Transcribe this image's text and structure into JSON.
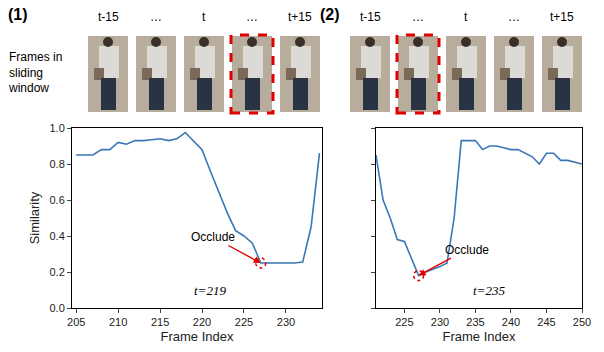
{
  "frames": {
    "row_label": [
      "Frames in",
      "sliding",
      "window"
    ],
    "panels": [
      {
        "label": "(1)",
        "frame_labels": [
          "t-15",
          "…",
          "t",
          "…",
          "t+15"
        ],
        "highlighted": 3
      },
      {
        "label": "(2)",
        "frame_labels": [
          "t-15",
          "…",
          "t",
          "…",
          "t+15"
        ],
        "highlighted": 1
      }
    ]
  },
  "chart_data": [
    {
      "type": "line",
      "color": "#3a78b5",
      "grid": false,
      "x": [
        205,
        206,
        207,
        208,
        209,
        210,
        211,
        212,
        213,
        214,
        215,
        216,
        217,
        218,
        219,
        220,
        221,
        222,
        223,
        224,
        225,
        226,
        227,
        228,
        229,
        230,
        231,
        232,
        233,
        234
      ],
      "values": [
        0.85,
        0.85,
        0.85,
        0.88,
        0.88,
        0.92,
        0.91,
        0.93,
        0.93,
        0.935,
        0.94,
        0.93,
        0.94,
        0.975,
        0.93,
        0.88,
        0.76,
        0.64,
        0.53,
        0.43,
        0.4,
        0.36,
        0.25,
        0.25,
        0.25,
        0.25,
        0.25,
        0.255,
        0.45,
        0.86
      ],
      "xlim": [
        204.5,
        234.3
      ],
      "ylim": [
        0,
        1
      ],
      "xticks": [
        205,
        210,
        215,
        220,
        225,
        230
      ],
      "yticks": [
        {
          "value": 0,
          "label": "0.0"
        },
        {
          "value": 0.2,
          "label": "0.2"
        },
        {
          "value": 0.4,
          "label": "0.4"
        },
        {
          "value": 0.6,
          "label": "0.6"
        },
        {
          "value": 0.8,
          "label": "0.8"
        },
        {
          "value": 1,
          "label": "1.0"
        }
      ],
      "x_label": "Frame Index",
      "y_label": "Similarity",
      "annotations": [
        {
          "text": "Occlude",
          "x": 227,
          "y": 0.25
        },
        {
          "text": "t=219"
        }
      ]
    },
    {
      "type": "line",
      "color": "#3a78b5",
      "grid": false,
      "tick_labels": "x",
      "x": [
        221,
        222,
        223,
        224,
        225,
        226,
        227,
        228,
        229,
        230,
        231,
        232,
        233,
        234,
        235,
        236,
        237,
        238,
        239,
        240,
        241,
        242,
        243,
        244,
        245,
        246,
        247,
        248,
        249,
        250
      ],
      "values": [
        0.85,
        0.6,
        0.5,
        0.38,
        0.37,
        0.28,
        0.18,
        0.2,
        0.215,
        0.23,
        0.25,
        0.5,
        0.93,
        0.93,
        0.93,
        0.88,
        0.9,
        0.9,
        0.89,
        0.88,
        0.88,
        0.86,
        0.84,
        0.8,
        0.86,
        0.86,
        0.82,
        0.82,
        0.81,
        0.8
      ],
      "xlim": [
        221,
        250
      ],
      "ylim": [
        0,
        1
      ],
      "xticks": [
        225,
        230,
        235,
        240,
        245,
        250
      ],
      "yticks": [
        0,
        0.2,
        0.4,
        0.6,
        0.8,
        1
      ],
      "x_label": "Frame Index",
      "annotations": [
        {
          "text": "Occlude",
          "x": 227,
          "y": 0.18
        },
        {
          "text": "t=235"
        }
      ]
    }
  ]
}
